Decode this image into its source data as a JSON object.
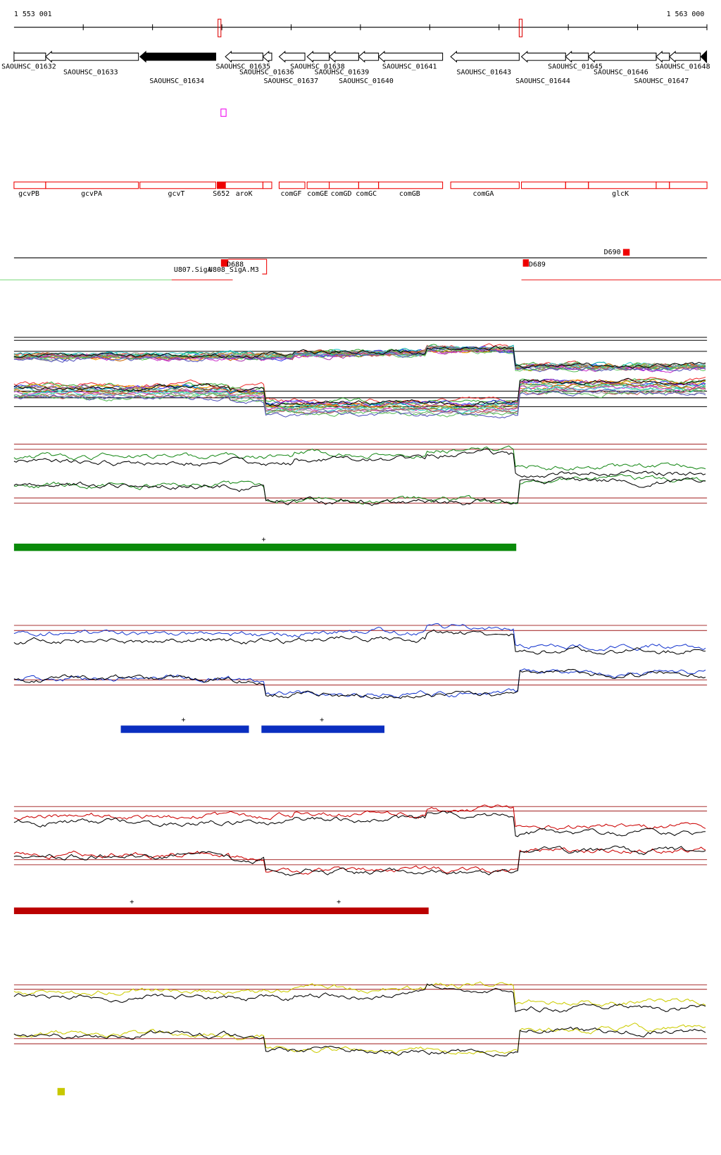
{
  "ruler": {
    "start": "1 553 001",
    "end": "1 563 000"
  },
  "genes": [
    "SAOUHSC_01632",
    "SAOUHSC_01633",
    "SAOUHSC_01634",
    "SAOUHSC_01635",
    "SAOUHSC_01636",
    "SAOUHSC_01637",
    "SAOUHSC_01638",
    "SAOUHSC_01639",
    "SAOUHSC_01640",
    "SAOUHSC_01641",
    "SAOUHSC_01643",
    "SAOUHSC_01644",
    "SAOUHSC_01645",
    "SAOUHSC_01646",
    "SAOUHSC_01647",
    "SAOUHSC_01648"
  ],
  "features": [
    "gcvPB",
    "gcvPA",
    "gcvT",
    "S652",
    "aroK",
    "comGF",
    "comGE",
    "comGD",
    "comGC",
    "comGB",
    "comGA",
    "glcK"
  ],
  "annotations": [
    "D688",
    "D689",
    "D690",
    "U807.SigA",
    "U808_SigA.M3"
  ],
  "segments": {
    "green": [
      "+"
    ],
    "blue": [
      "+",
      "+"
    ],
    "red": [
      "+",
      "+"
    ]
  }
}
